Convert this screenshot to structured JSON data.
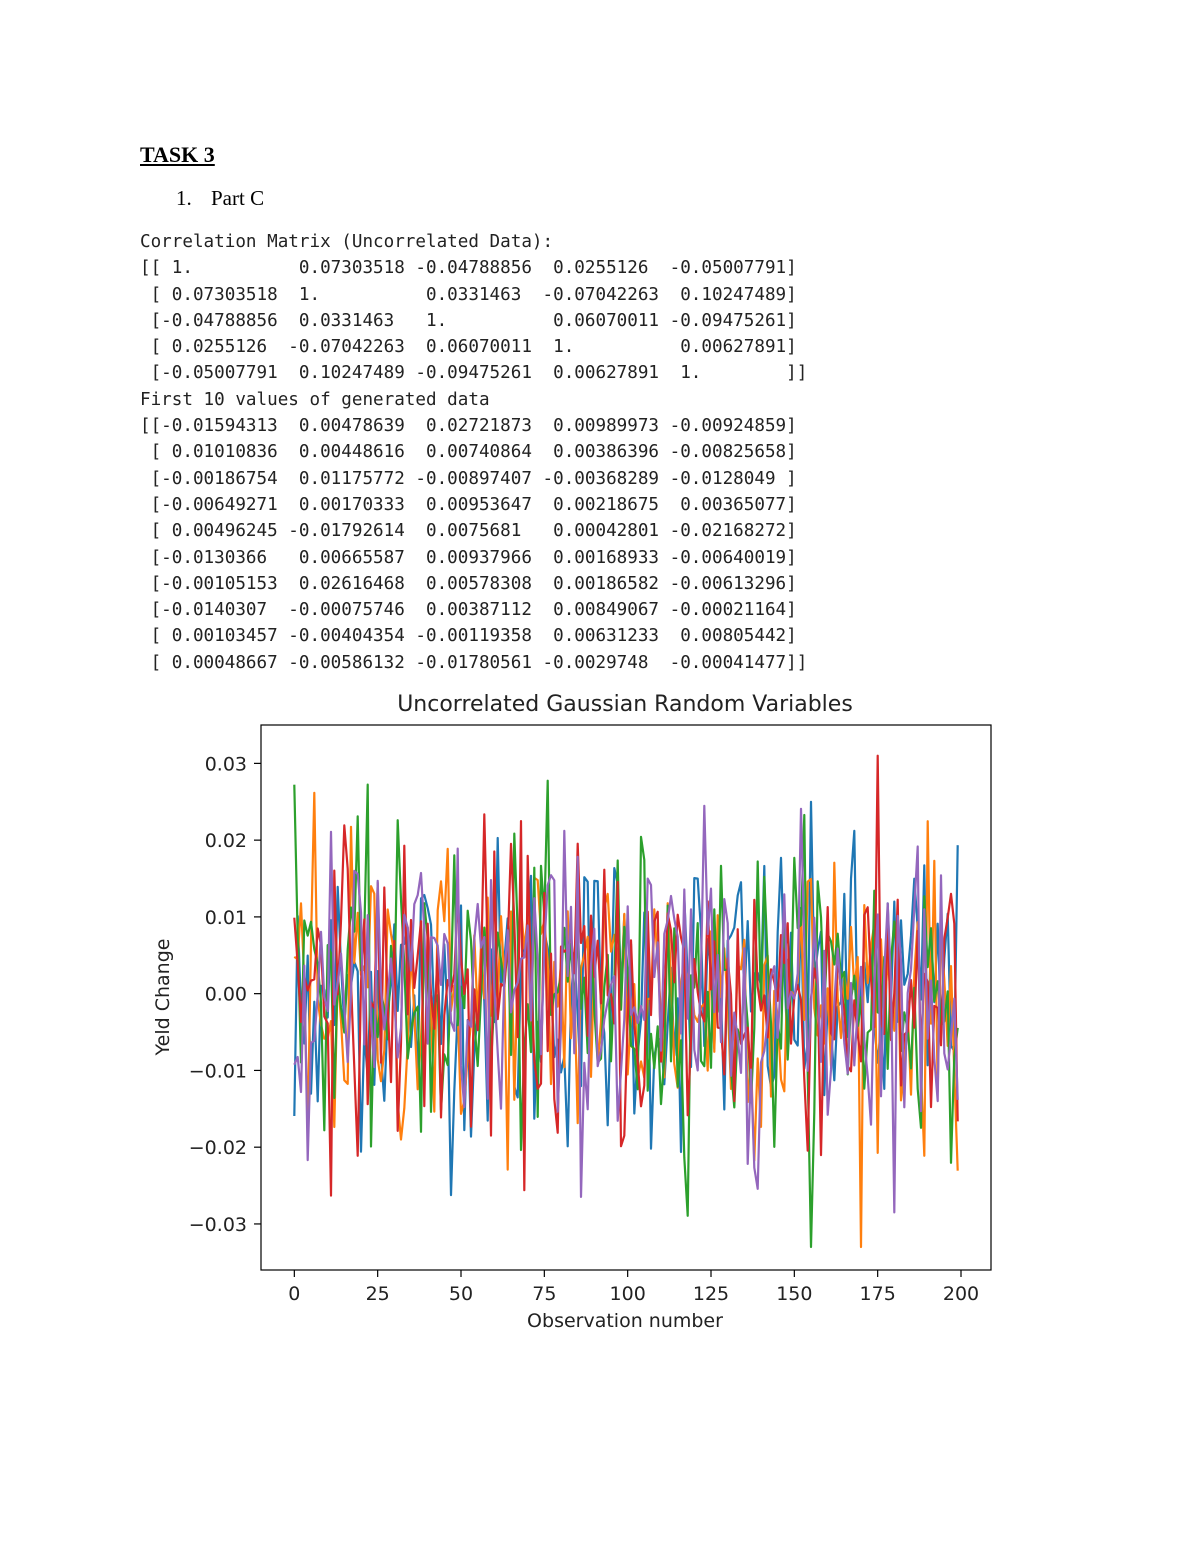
{
  "heading": "TASK 3",
  "list": {
    "number": "1.",
    "label": "Part C"
  },
  "output": {
    "lines": [
      "Correlation Matrix (Uncorrelated Data):",
      "[[ 1.          0.07303518 -0.04788856  0.0255126  -0.05007791]",
      " [ 0.07303518  1.          0.0331463  -0.07042263  0.10247489]",
      " [-0.04788856  0.0331463   1.          0.06070011 -0.09475261]",
      " [ 0.0255126  -0.07042263  0.06070011  1.          0.00627891]",
      " [-0.05007791  0.10247489 -0.09475261  0.00627891  1.        ]]",
      "First 10 values of generated data",
      "[[-0.01594313  0.00478639  0.02721873  0.00989973 -0.00924859]",
      " [ 0.01010836  0.00448616  0.00740864  0.00386396 -0.00825658]",
      " [-0.00186754  0.01175772 -0.00897407 -0.00368289 -0.0128049 ]",
      " [-0.00649271  0.00170333  0.00953647  0.00218675  0.00365077]",
      " [ 0.00496245 -0.01792614  0.0075681   0.00042801 -0.02168272]",
      " [-0.0130366   0.00665587  0.00937966  0.00168933 -0.00640019]",
      " [-0.00105153  0.02616468  0.00578308  0.00186582 -0.00613296]",
      " [-0.0140307  -0.00075746  0.00387112  0.00849067 -0.00021164]",
      " [ 0.00103457 -0.00404354 -0.00119358  0.00631233  0.00805442]",
      " [ 0.00048667 -0.00586132 -0.01780561 -0.0029748  -0.00041477]]"
    ]
  },
  "chart_data": {
    "type": "line",
    "title": "Uncorrelated Gaussian Random Variables",
    "xlabel": "Observation number",
    "ylabel": "Yeld Change",
    "xlim": [
      -10,
      209
    ],
    "ylim": [
      -0.036,
      0.035
    ],
    "xticks": [
      0,
      25,
      50,
      75,
      100,
      125,
      150,
      175,
      200
    ],
    "yticks": [
      -0.03,
      -0.02,
      -0.01,
      0.0,
      0.01,
      0.02,
      0.03
    ],
    "ytick_labels": [
      "−0.03",
      "−0.02",
      "−0.01",
      "0.00",
      "0.01",
      "0.02",
      "0.03"
    ],
    "grid": false,
    "legend": "none",
    "n_points": 200,
    "series": [
      {
        "color": "#1f77b4",
        "first_values": [
          -0.01594313,
          0.01010836,
          -0.00186754,
          -0.00649271,
          0.00496245,
          -0.0130366,
          -0.00105153,
          -0.0140307,
          0.00103457,
          0.00048667
        ]
      },
      {
        "color": "#ff7f0e",
        "first_values": [
          0.00478639,
          0.00448616,
          0.01175772,
          0.00170333,
          -0.01792614,
          0.00665587,
          0.02616468,
          -0.00075746,
          -0.00404354,
          -0.00586132
        ]
      },
      {
        "color": "#2ca02c",
        "first_values": [
          0.02721873,
          0.00740864,
          -0.00897407,
          0.00953647,
          0.0075681,
          0.00937966,
          0.00578308,
          0.00387112,
          -0.00119358,
          -0.01780561
        ]
      },
      {
        "color": "#d62728",
        "first_values": [
          0.00989973,
          0.00386396,
          -0.00368289,
          0.00218675,
          0.00042801,
          0.00168933,
          0.00186582,
          0.00849067,
          0.00631233,
          -0.0029748
        ]
      },
      {
        "color": "#9467bd",
        "first_values": [
          -0.00924859,
          -0.00825658,
          -0.0128049,
          0.00365077,
          -0.02168272,
          -0.00640019,
          -0.00613296,
          -0.00021164,
          0.00805442,
          -0.00041477
        ]
      }
    ]
  }
}
